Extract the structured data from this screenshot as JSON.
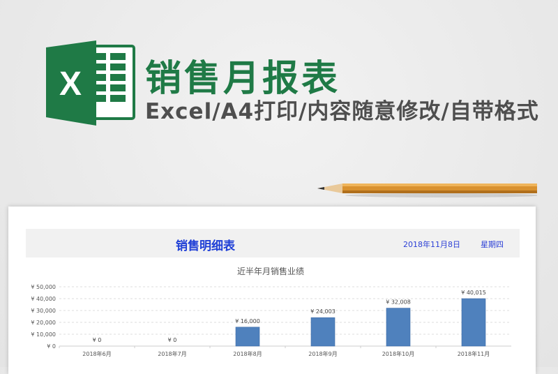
{
  "header": {
    "title": "销售月报表",
    "subtitle": "Excel/A4打印/内容随意修改/自带格式",
    "logo_letter": "X"
  },
  "sheet": {
    "title": "销售明细表",
    "date": "2018年11月8日",
    "weekday": "星期四"
  },
  "colors": {
    "brand_green": "#1f7a46",
    "bar": "#4f81bd",
    "band_text": "#1f3fd6"
  },
  "chart_data": {
    "type": "bar",
    "title": "近半年月销售业绩",
    "categories": [
      "2018年6月",
      "2018年7月",
      "2018年8月",
      "2018年9月",
      "2018年10月",
      "2018年11月"
    ],
    "values": [
      0,
      0,
      16000,
      24003,
      32008,
      40015
    ],
    "value_labels": [
      "¥ 0",
      "¥ 0",
      "¥ 16,000",
      "¥ 24,003",
      "¥ 32,008",
      "¥ 40,015"
    ],
    "yticks": [
      "¥ 0",
      "¥ 10,000",
      "¥ 20,000",
      "¥ 30,000",
      "¥ 40,000",
      "¥ 50,000"
    ],
    "ylim": [
      0,
      50000
    ],
    "grid": true,
    "legend": "none"
  }
}
